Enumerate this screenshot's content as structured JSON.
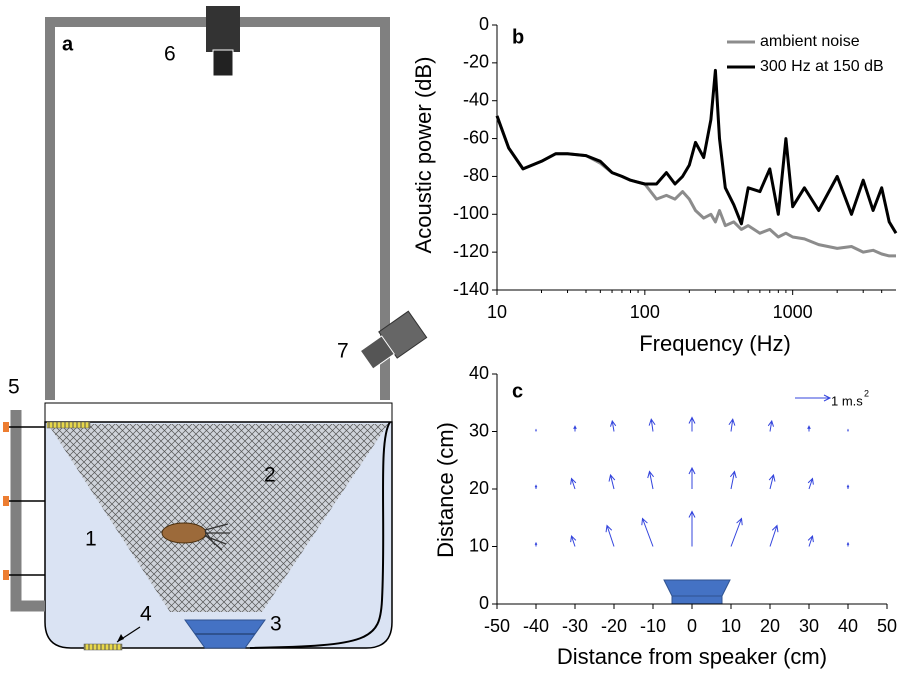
{
  "panels": [
    "a",
    "b",
    "c"
  ],
  "diagram": {
    "labels": [
      "1",
      "2",
      "3",
      "4",
      "5",
      "6",
      "7"
    ]
  },
  "chart_data": [
    {
      "type": "line",
      "xlabel": "Frequency (Hz)",
      "ylabel": "Acoustic power (dB)",
      "xlog": true,
      "xlim": [
        10,
        5000
      ],
      "xticks": [
        10,
        100,
        1000
      ],
      "ylim": [
        -140,
        0
      ],
      "yticks": [
        0,
        -20,
        -40,
        -60,
        -80,
        -100,
        -120,
        -140
      ],
      "x": [
        10,
        12,
        15,
        20,
        25,
        30,
        40,
        50,
        60,
        70,
        80,
        100,
        120,
        140,
        160,
        180,
        200,
        220,
        250,
        280,
        300,
        320,
        350,
        400,
        450,
        500,
        600,
        700,
        800,
        900,
        1000,
        1200,
        1500,
        2000,
        2500,
        3000,
        3500,
        4000,
        4500,
        5000
      ],
      "series": [
        {
          "name": "ambient noise",
          "color": "#8c8c8c",
          "values": [
            -48,
            -65,
            -76,
            -72,
            -68,
            -68,
            -69,
            -73,
            -78,
            -80,
            -82,
            -84,
            -92,
            -90,
            -92,
            -88,
            -92,
            -98,
            -102,
            -100,
            -104,
            -98,
            -106,
            -104,
            -108,
            -106,
            -110,
            -108,
            -112,
            -110,
            -112,
            -113,
            -116,
            -118,
            -117,
            -120,
            -119,
            -121,
            -122,
            -122
          ]
        },
        {
          "name": "300 Hz at 150 dB",
          "color": "#000000",
          "values": [
            -48,
            -65,
            -76,
            -72,
            -68,
            -68,
            -69,
            -72,
            -78,
            -80,
            -82,
            -84,
            -84,
            -78,
            -84,
            -80,
            -74,
            -62,
            -70,
            -50,
            -24,
            -60,
            -86,
            -95,
            -105,
            -86,
            -88,
            -76,
            -100,
            -60,
            -96,
            -86,
            -98,
            -80,
            -100,
            -82,
            -98,
            -86,
            -104,
            -110
          ]
        }
      ]
    },
    {
      "type": "quiver",
      "xlabel": "Distance from speaker (cm)",
      "ylabel": "Distance (cm)",
      "color": "#3344dd",
      "xlim": [
        -50,
        50
      ],
      "xticks": [
        -50,
        -40,
        -30,
        -20,
        -10,
        0,
        10,
        20,
        30,
        40,
        50
      ],
      "ylim": [
        0,
        40
      ],
      "yticks": [
        0,
        10,
        20,
        30,
        40
      ],
      "x": [
        -40,
        -30,
        -20,
        -10,
        0,
        10,
        20,
        30,
        40,
        -40,
        -30,
        -20,
        -10,
        0,
        10,
        20,
        30,
        40,
        -40,
        -30,
        -20,
        -10,
        0,
        10,
        20,
        30,
        40
      ],
      "y": [
        10,
        10,
        10,
        10,
        10,
        10,
        10,
        10,
        10,
        20,
        20,
        20,
        20,
        20,
        20,
        20,
        20,
        20,
        30,
        30,
        30,
        30,
        30,
        30,
        30,
        30,
        30
      ],
      "u": [
        0,
        -0.1,
        -0.2,
        -0.3,
        0,
        0.3,
        0.2,
        0.1,
        0,
        0,
        -0.1,
        -0.1,
        -0.1,
        0,
        0.1,
        0.1,
        0.1,
        0,
        0,
        0,
        -0.05,
        -0.05,
        0,
        0.05,
        0.05,
        0,
        0
      ],
      "v": [
        0.1,
        0.3,
        0.6,
        0.8,
        1.0,
        0.8,
        0.6,
        0.3,
        0.1,
        0.1,
        0.3,
        0.4,
        0.5,
        0.6,
        0.5,
        0.4,
        0.3,
        0.1,
        0.05,
        0.15,
        0.3,
        0.35,
        0.4,
        0.35,
        0.3,
        0.15,
        0.05
      ],
      "reference_arrow": {
        "value": 1,
        "label": "1 m.s",
        "label_sup": "2"
      }
    }
  ]
}
